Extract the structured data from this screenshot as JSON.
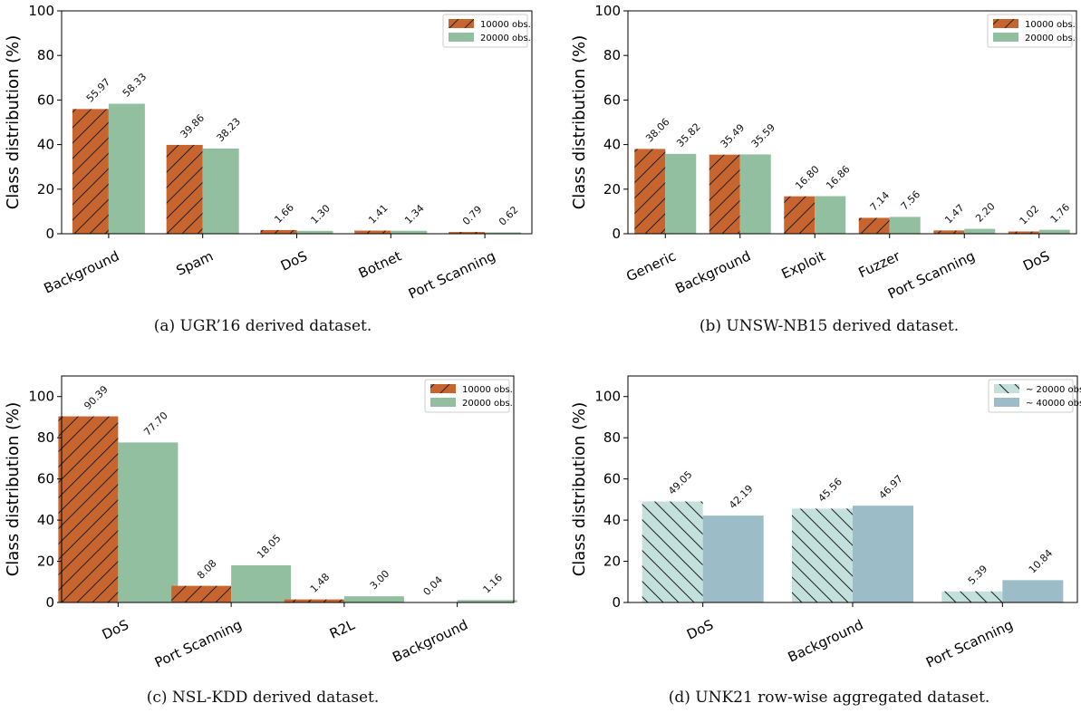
{
  "colors": {
    "orange": "#c8652f",
    "green": "#93bfa1",
    "light_teal": "#c4e0dc",
    "blue_grey": "#9cbcc8"
  },
  "chart_data": [
    {
      "type": "bar",
      "caption": "(a) UGR’16 derived dataset.",
      "ylabel": "Class distribution (%)",
      "ylim": [
        0,
        100
      ],
      "yticks": [
        0,
        20,
        40,
        60,
        80,
        100
      ],
      "categories": [
        "Background",
        "Spam",
        "DoS",
        "Botnet",
        "Port Scanning"
      ],
      "series": [
        {
          "name": "10000 obs.",
          "values": [
            55.97,
            39.86,
            1.66,
            1.41,
            0.79
          ],
          "color": "#c8652f",
          "hatch": "/"
        },
        {
          "name": "20000 obs.",
          "values": [
            58.33,
            38.23,
            1.3,
            1.34,
            0.62
          ],
          "color": "#93bfa1",
          "hatch": ""
        }
      ],
      "legend": "top-right"
    },
    {
      "type": "bar",
      "caption": "(b) UNSW-NB15 derived dataset.",
      "ylabel": "Class distribution (%)",
      "ylim": [
        0,
        100
      ],
      "yticks": [
        0,
        20,
        40,
        60,
        80,
        100
      ],
      "categories": [
        "Generic",
        "Background",
        "Exploit",
        "Fuzzer",
        "Port Scanning",
        "DoS"
      ],
      "series": [
        {
          "name": "10000 obs.",
          "values": [
            38.06,
            35.49,
            16.8,
            7.14,
            1.47,
            1.02
          ],
          "color": "#c8652f",
          "hatch": "/"
        },
        {
          "name": "20000 obs.",
          "values": [
            35.82,
            35.59,
            16.86,
            7.56,
            2.2,
            1.76
          ],
          "color": "#93bfa1",
          "hatch": ""
        }
      ],
      "legend": "top-right"
    },
    {
      "type": "bar",
      "caption": "(c) NSL-KDD derived dataset.",
      "ylabel": "Class distribution (%)",
      "ylim": [
        0,
        110
      ],
      "yticks": [
        0,
        20,
        40,
        60,
        80,
        100
      ],
      "categories": [
        "DoS",
        "Port Scanning",
        "R2L",
        "Background"
      ],
      "series": [
        {
          "name": "10000 obs.",
          "values": [
            90.39,
            8.08,
            1.48,
            0.04
          ],
          "color": "#c8652f",
          "hatch": "/"
        },
        {
          "name": "20000 obs.",
          "values": [
            77.7,
            18.05,
            3.0,
            1.16
          ],
          "color": "#93bfa1",
          "hatch": ""
        }
      ],
      "legend": "top-right"
    },
    {
      "type": "bar",
      "caption": "(d) UNK21 row-wise aggregated dataset.",
      "ylabel": "Class distribution (%)",
      "ylim": [
        0,
        110
      ],
      "yticks": [
        0,
        20,
        40,
        60,
        80,
        100
      ],
      "categories": [
        "DoS",
        "Background",
        "Port Scanning"
      ],
      "series": [
        {
          "name": "~ 20000 obs.",
          "values": [
            49.05,
            45.56,
            5.39
          ],
          "color": "#c4e0dc",
          "hatch": "\\"
        },
        {
          "name": "~ 40000 obs.",
          "values": [
            42.19,
            46.97,
            10.84
          ],
          "color": "#9cbcc8",
          "hatch": ""
        }
      ],
      "legend": "top-right"
    }
  ]
}
